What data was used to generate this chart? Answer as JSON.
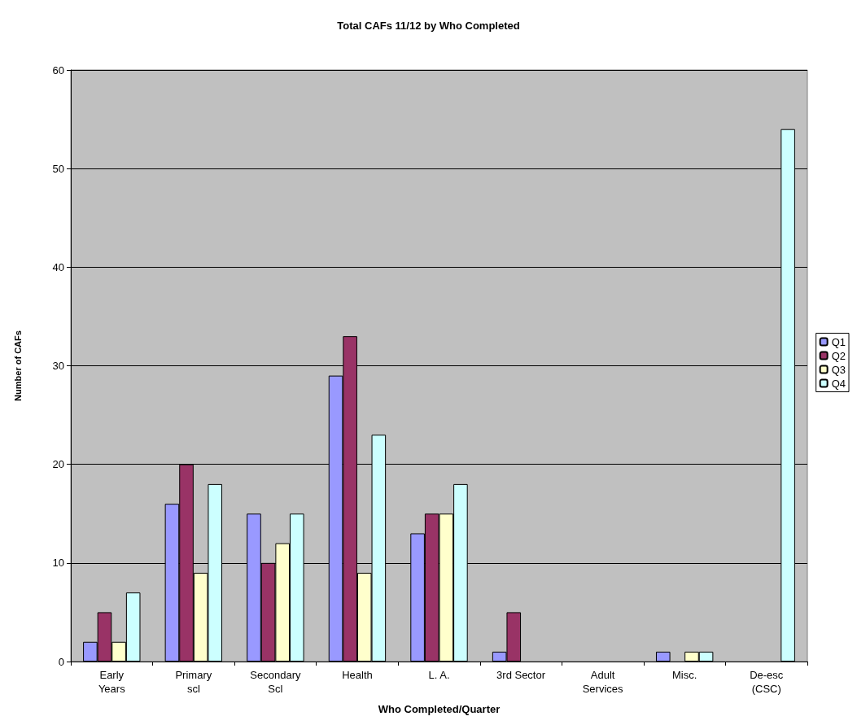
{
  "chart_data": {
    "type": "bar",
    "title": "Total CAFs 11/12 by Who Completed",
    "xlabel": "Who Completed/Quarter",
    "ylabel": "Number of CAFs",
    "categories": [
      "Early\nYears",
      "Primary\nscl",
      "Secondary\nScl",
      "Health",
      "L. A.",
      "3rd Sector",
      "Adult\nServices",
      "Misc.",
      "De-esc\n(CSC)"
    ],
    "series": [
      {
        "name": "Q1",
        "color": "#9999ff",
        "values": [
          2,
          16,
          15,
          29,
          13,
          1,
          0,
          1,
          0
        ]
      },
      {
        "name": "Q2",
        "color": "#993366",
        "values": [
          5,
          20,
          10,
          33,
          15,
          5,
          0,
          0,
          0
        ]
      },
      {
        "name": "Q3",
        "color": "#ffffcc",
        "values": [
          2,
          9,
          12,
          9,
          15,
          0,
          0,
          1,
          0
        ]
      },
      {
        "name": "Q4",
        "color": "#ccffff",
        "values": [
          7,
          18,
          15,
          23,
          18,
          0,
          0,
          1,
          54
        ]
      }
    ],
    "ylim": [
      0,
      60
    ],
    "yticks": [
      0,
      10,
      20,
      30,
      40,
      50,
      60
    ],
    "grid": "y",
    "legend": "right"
  }
}
